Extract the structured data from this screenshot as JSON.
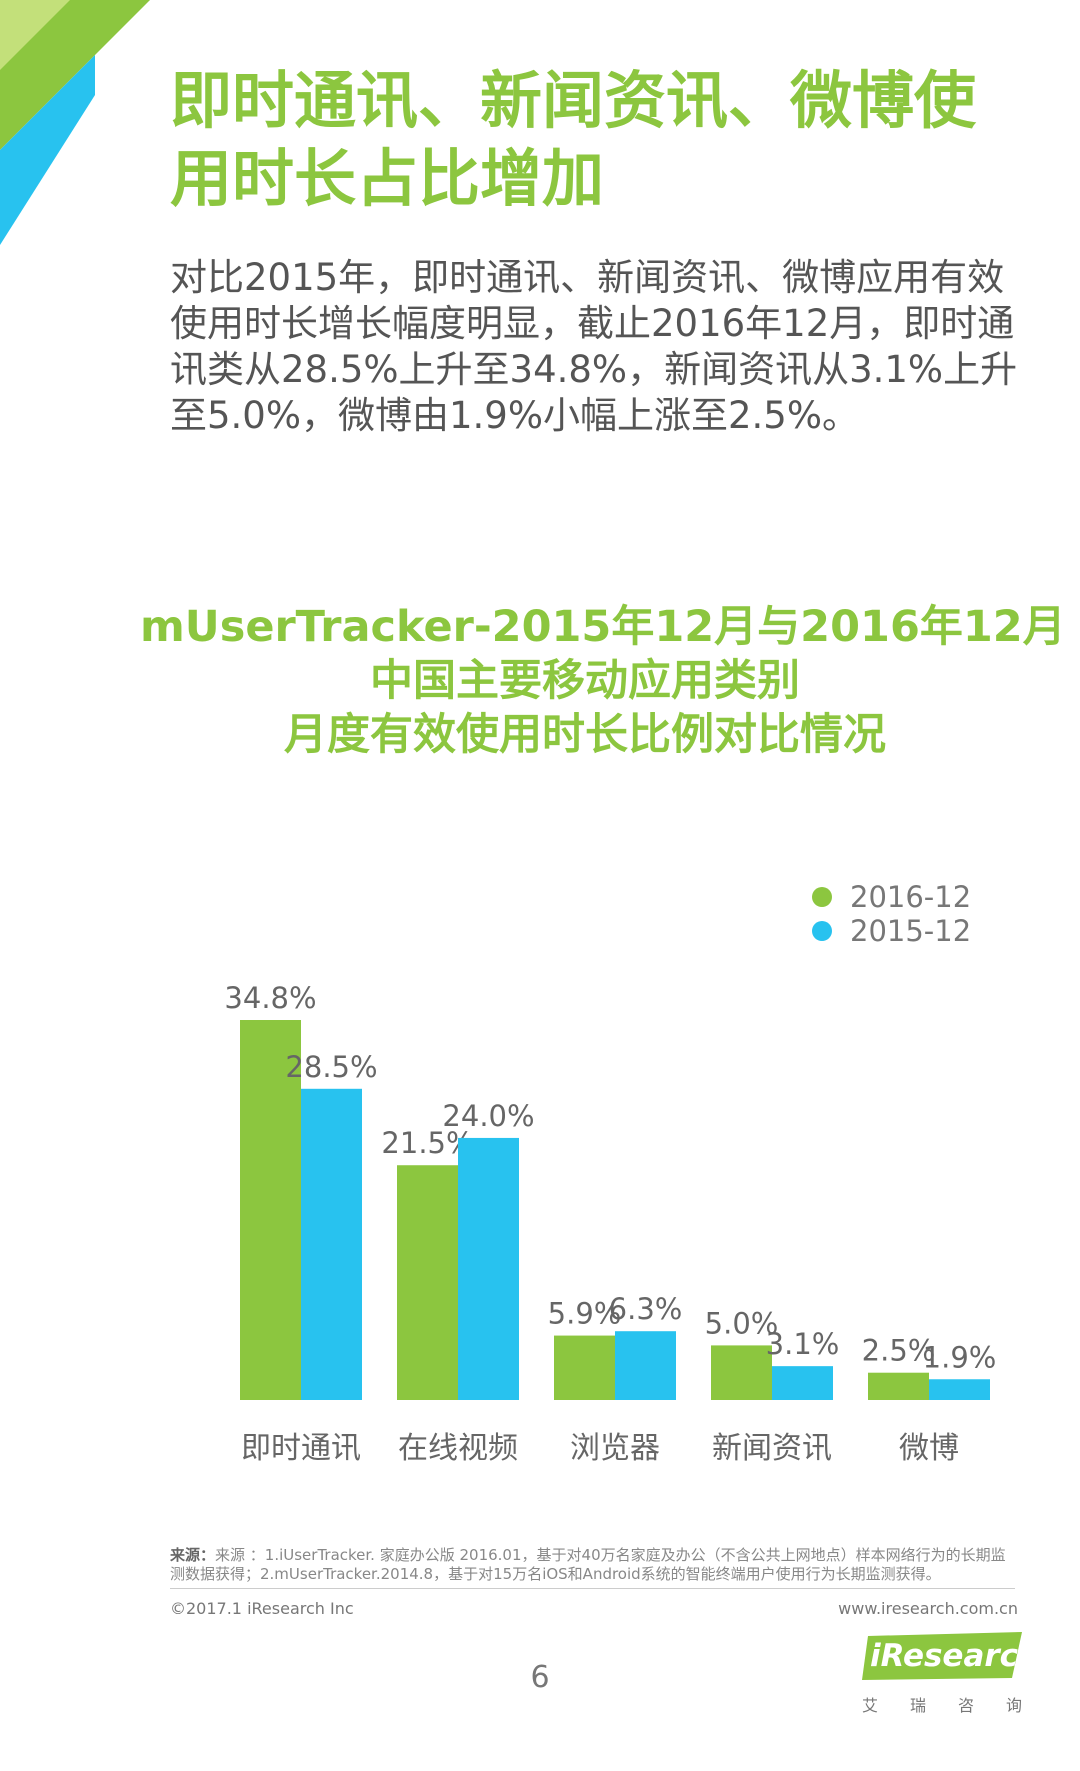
{
  "page": {
    "title": "即时通讯、新闻资讯、微博使用时长占比增加",
    "intro": "对比2015年，即时通讯、新闻资讯、微博应用有效使用时长增长幅度明显，截止2016年12月，即时通讯类从28.5%上升至34.8%，新闻资讯从3.1%上升至5.0%，微博由1.9%小幅上涨至2.5%。",
    "accent_color": "#8cc63f",
    "secondary_color": "#28c2ef"
  },
  "chart_data": {
    "type": "bar",
    "title_lines": [
      "mUserTracker-2015年12月与2016年12月",
      "中国主要移动应用类别",
      "月度有效使用时长比例对比情况"
    ],
    "categories": [
      "即时通讯",
      "在线视频",
      "浏览器",
      "新闻资讯",
      "微博"
    ],
    "series": [
      {
        "name": "2016-12",
        "color": "#8cc63f",
        "values": [
          34.8,
          21.5,
          5.9,
          5.0,
          2.5
        ],
        "labels": [
          "34.8%",
          "21.5%",
          "5.9%",
          "5.0%",
          "2.5%"
        ]
      },
      {
        "name": "2015-12",
        "color": "#28c2ef",
        "values": [
          28.5,
          24.0,
          6.3,
          3.1,
          1.9
        ],
        "labels": [
          "28.5%",
          "24.0%",
          "6.3%",
          "3.1%",
          "1.9%"
        ]
      }
    ],
    "legend_position": "top-right",
    "grid": false,
    "ylim": [
      0,
      34.8
    ]
  },
  "footer": {
    "source_label": "来源：",
    "source_text": "来源 ：1.iUserTracker. 家庭办公版 2016.01，基于对40万名家庭及办公（不含公共上网地点）样本网络行为的长期监测数据获得；2.mUserTracker.2014.8，基于对15万名iOS和Android系统的智能终端用户使用行为长期监测获得。",
    "copyright": "©2017.1 iResearch Inc",
    "website": "www.iresearch.com.cn",
    "page_number": "6",
    "logo_text": "iResearch",
    "logo_subtitle": [
      "艾",
      "瑞",
      "咨",
      "询"
    ]
  }
}
